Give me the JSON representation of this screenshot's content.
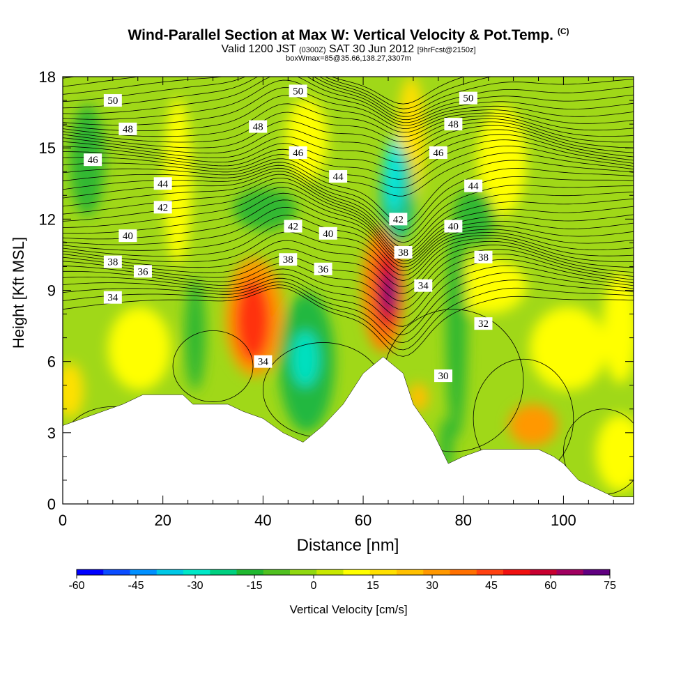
{
  "title_main": "Wind-Parallel Section at Max W: Vertical Velocity & Pot.Temp.",
  "title_mark": "(C)",
  "subtitle_a": "Valid 1200 JST",
  "subtitle_b": "(0300Z)",
  "subtitle_c": "SAT 30 Jun 2012",
  "subtitle_d": "[9hrFcst@2150z]",
  "info_line": "boxWmax=85@35.66,138.27,3307m",
  "chart_data": {
    "type": "heatmap",
    "xlabel": "Distance [nm]",
    "ylabel": "Height [Kft MSL]",
    "xlim": [
      0,
      114
    ],
    "ylim": [
      0,
      18
    ],
    "x_ticks": [
      0,
      20,
      40,
      60,
      80,
      100
    ],
    "y_ticks": [
      0,
      3,
      6,
      9,
      12,
      15,
      18
    ],
    "colorbar": {
      "label": "Vertical Velocity [cm/s]",
      "range": [
        -60,
        75
      ],
      "ticks": [
        -60,
        -45,
        -30,
        -15,
        0,
        15,
        30,
        45,
        60,
        75
      ],
      "colors": [
        "#0000ff",
        "#0a4cff",
        "#0090ff",
        "#00c8e6",
        "#00e8c8",
        "#00d080",
        "#20b830",
        "#50c020",
        "#90d810",
        "#c8e800",
        "#ffff00",
        "#ffe000",
        "#ffc000",
        "#ff9800",
        "#ff7000",
        "#ff4010",
        "#f01010",
        "#c80030",
        "#a00060",
        "#600080"
      ]
    },
    "terrain_kft": [
      [
        0,
        3.3
      ],
      [
        4,
        3.6
      ],
      [
        8,
        3.9
      ],
      [
        12,
        4.2
      ],
      [
        16,
        4.6
      ],
      [
        24,
        4.6
      ],
      [
        26,
        4.2
      ],
      [
        33,
        4.2
      ],
      [
        36,
        3.9
      ],
      [
        40,
        3.6
      ],
      [
        44,
        3.0
      ],
      [
        48,
        2.6
      ],
      [
        52,
        3.3
      ],
      [
        56,
        4.2
      ],
      [
        60,
        5.5
      ],
      [
        64,
        6.2
      ],
      [
        68,
        5.5
      ],
      [
        70,
        4.2
      ],
      [
        72,
        3.6
      ],
      [
        74,
        3.0
      ],
      [
        77,
        1.7
      ],
      [
        80,
        2.0
      ],
      [
        84,
        2.3
      ],
      [
        95,
        2.3
      ],
      [
        98,
        2.0
      ],
      [
        100,
        1.7
      ],
      [
        103,
        1.0
      ],
      [
        106,
        0.7
      ],
      [
        110,
        0.3
      ],
      [
        114,
        0.3
      ]
    ],
    "theta_labels": [
      {
        "x": 10,
        "y": 17.0,
        "v": "50"
      },
      {
        "x": 47,
        "y": 17.4,
        "v": "50"
      },
      {
        "x": 81,
        "y": 17.1,
        "v": "50"
      },
      {
        "x": 13,
        "y": 15.8,
        "v": "48"
      },
      {
        "x": 39,
        "y": 15.9,
        "v": "48"
      },
      {
        "x": 78,
        "y": 16.0,
        "v": "48"
      },
      {
        "x": 6,
        "y": 14.5,
        "v": "46"
      },
      {
        "x": 47,
        "y": 14.8,
        "v": "46"
      },
      {
        "x": 75,
        "y": 14.8,
        "v": "46"
      },
      {
        "x": 20,
        "y": 13.5,
        "v": "44"
      },
      {
        "x": 55,
        "y": 13.8,
        "v": "44"
      },
      {
        "x": 82,
        "y": 13.4,
        "v": "44"
      },
      {
        "x": 20,
        "y": 12.5,
        "v": "42"
      },
      {
        "x": 46,
        "y": 11.7,
        "v": "42"
      },
      {
        "x": 67,
        "y": 12.0,
        "v": "42"
      },
      {
        "x": 13,
        "y": 11.3,
        "v": "40"
      },
      {
        "x": 53,
        "y": 11.4,
        "v": "40"
      },
      {
        "x": 78,
        "y": 11.7,
        "v": "40"
      },
      {
        "x": 10,
        "y": 10.2,
        "v": "38"
      },
      {
        "x": 45,
        "y": 10.3,
        "v": "38"
      },
      {
        "x": 68,
        "y": 10.6,
        "v": "38"
      },
      {
        "x": 84,
        "y": 10.4,
        "v": "38"
      },
      {
        "x": 16,
        "y": 9.8,
        "v": "36"
      },
      {
        "x": 52,
        "y": 9.9,
        "v": "36"
      },
      {
        "x": 10,
        "y": 8.7,
        "v": "34"
      },
      {
        "x": 40,
        "y": 6.0,
        "v": "34"
      },
      {
        "x": 72,
        "y": 9.2,
        "v": "34"
      },
      {
        "x": 84,
        "y": 7.6,
        "v": "32"
      },
      {
        "x": 76,
        "y": 5.4,
        "v": "30"
      }
    ]
  }
}
